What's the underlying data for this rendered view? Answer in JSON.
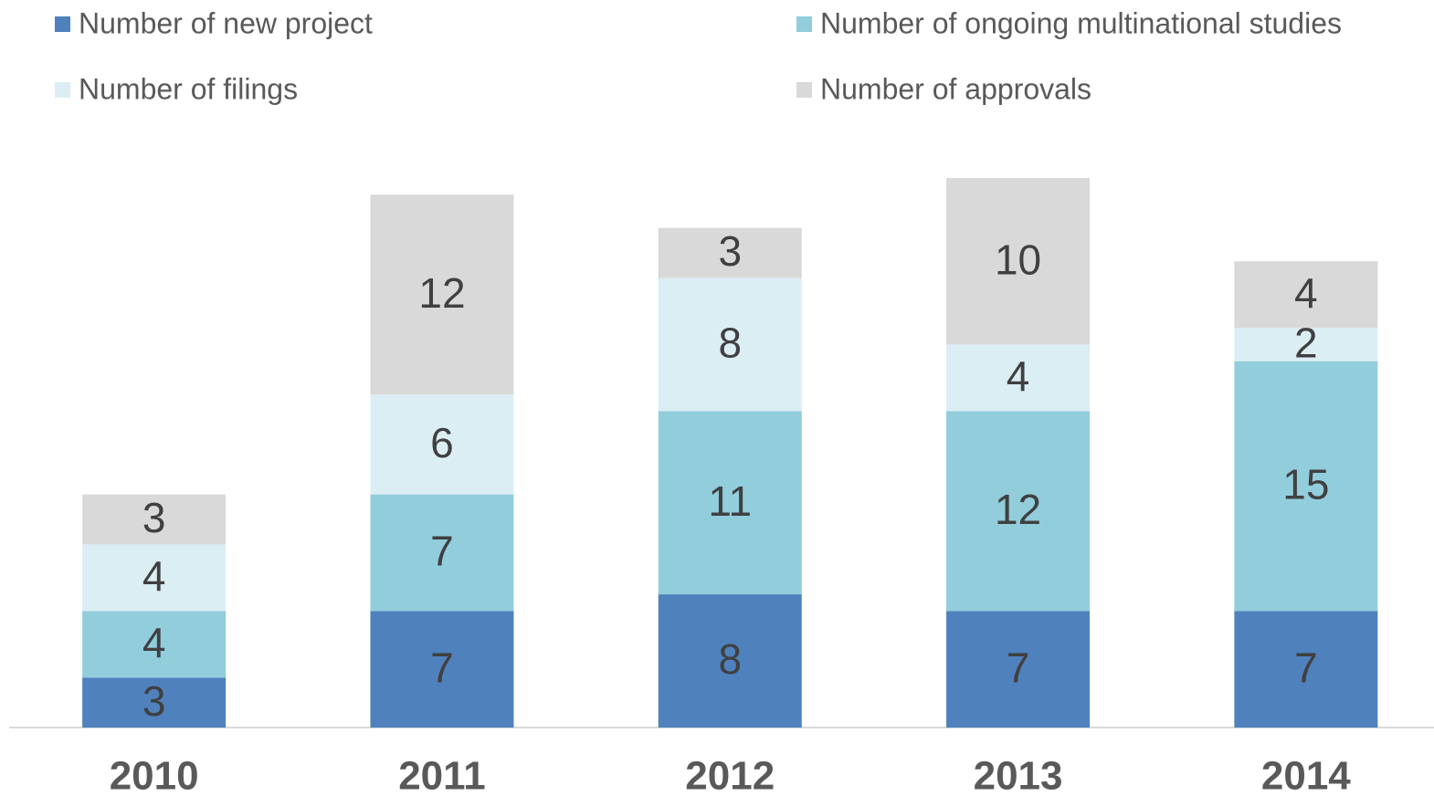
{
  "chart_data": {
    "type": "stacked_bar",
    "categories": [
      "2010",
      "2011",
      "2012",
      "2013",
      "2014"
    ],
    "series": [
      {
        "name": "Number of new project",
        "color": "#4f81bd",
        "values": [
          3,
          7,
          8,
          7,
          7
        ]
      },
      {
        "name": "Number of ongoing multinational studies",
        "color": "#92cddc",
        "values": [
          4,
          7,
          11,
          12,
          15
        ]
      },
      {
        "name": "Number of filings",
        "color": "#dbeef4",
        "values": [
          4,
          6,
          8,
          4,
          2
        ]
      },
      {
        "name": "Number of approvals",
        "color": "#d9d9d9",
        "values": [
          3,
          12,
          3,
          10,
          4
        ]
      }
    ]
  }
}
